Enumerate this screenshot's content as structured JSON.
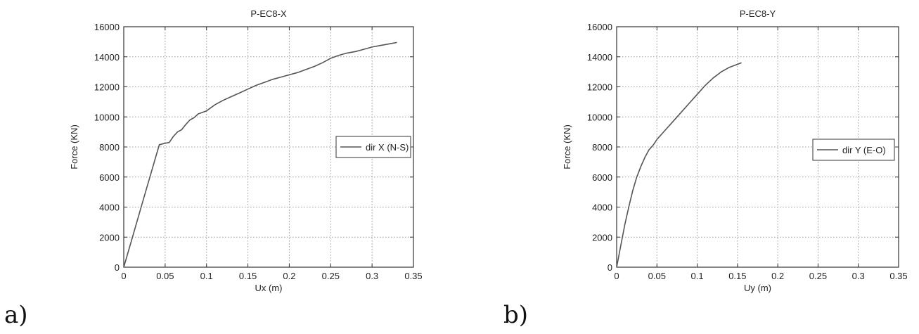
{
  "chart_data": [
    {
      "type": "line",
      "panel_label": "a)",
      "title": "P-EC8-X",
      "xlabel": "Ux (m)",
      "ylabel": "Force (KN)",
      "xlim": [
        0,
        0.35
      ],
      "ylim": [
        0,
        16000
      ],
      "xticks": [
        "0",
        "0.05",
        "0.1",
        "0.15",
        "0.2",
        "0.25",
        "0.3",
        "0.35"
      ],
      "yticks": [
        "0",
        "2000",
        "4000",
        "6000",
        "8000",
        "10000",
        "12000",
        "14000",
        "16000"
      ],
      "grid": "dotted",
      "legend_position": "right",
      "series": [
        {
          "name": "dir X (N-S)",
          "color": "#555555",
          "x": [
            0,
            0.01,
            0.02,
            0.03,
            0.04,
            0.043,
            0.05,
            0.055,
            0.06,
            0.065,
            0.07,
            0.075,
            0.08,
            0.085,
            0.09,
            0.1,
            0.11,
            0.12,
            0.13,
            0.14,
            0.15,
            0.16,
            0.17,
            0.18,
            0.19,
            0.2,
            0.21,
            0.22,
            0.23,
            0.24,
            0.25,
            0.26,
            0.27,
            0.28,
            0.29,
            0.3,
            0.31,
            0.32,
            0.33
          ],
          "y": [
            0,
            1900,
            3800,
            5700,
            7600,
            8150,
            8250,
            8300,
            8700,
            9000,
            9150,
            9500,
            9800,
            9950,
            10200,
            10400,
            10800,
            11100,
            11350,
            11600,
            11850,
            12100,
            12300,
            12500,
            12650,
            12800,
            12950,
            13150,
            13350,
            13600,
            13900,
            14100,
            14250,
            14350,
            14500,
            14650,
            14750,
            14850,
            14950
          ]
        }
      ]
    },
    {
      "type": "line",
      "panel_label": "b)",
      "title": "P-EC8-Y",
      "xlabel": "Uy (m)",
      "ylabel": "Force (KN)",
      "xlim": [
        0,
        0.35
      ],
      "ylim": [
        0,
        16000
      ],
      "xticks": [
        "0",
        "0.05",
        "0.1",
        "0.15",
        "0.2",
        "0.25",
        "0.3",
        "0.35"
      ],
      "yticks": [
        "0",
        "2000",
        "4000",
        "6000",
        "8000",
        "10000",
        "12000",
        "14000",
        "16000"
      ],
      "grid": "dotted",
      "legend_position": "right",
      "series": [
        {
          "name": "dir Y (E-O)",
          "color": "#555555",
          "x": [
            0,
            0.005,
            0.01,
            0.015,
            0.02,
            0.025,
            0.03,
            0.035,
            0.04,
            0.045,
            0.05,
            0.06,
            0.07,
            0.08,
            0.09,
            0.1,
            0.11,
            0.12,
            0.13,
            0.14,
            0.15,
            0.155
          ],
          "y": [
            0,
            1400,
            2800,
            4000,
            5100,
            6000,
            6700,
            7300,
            7800,
            8100,
            8500,
            9100,
            9700,
            10300,
            10900,
            11500,
            12100,
            12600,
            13000,
            13300,
            13500,
            13600
          ]
        }
      ]
    }
  ]
}
